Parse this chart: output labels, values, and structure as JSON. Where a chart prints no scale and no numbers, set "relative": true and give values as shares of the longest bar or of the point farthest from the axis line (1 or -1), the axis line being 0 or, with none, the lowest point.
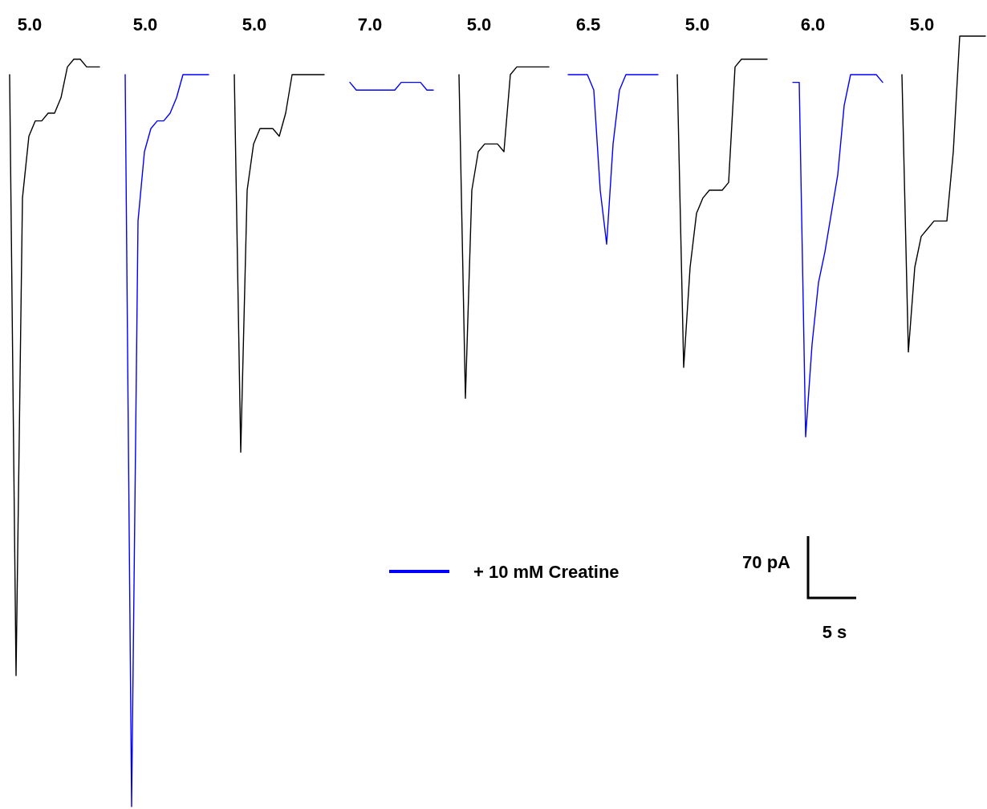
{
  "chart_data": {
    "type": "line",
    "relative": true,
    "legend": "bottom",
    "categories": [
      null,
      null,
      null,
      null,
      null,
      null,
      null,
      null,
      null,
      null,
      null,
      null,
      null,
      null,
      null,
      null,
      null,
      null,
      null,
      null,
      null,
      null,
      null,
      null,
      null,
      null,
      null,
      null,
      null,
      null,
      null,
      null,
      null,
      null,
      null,
      null,
      null,
      null,
      null,
      null,
      null,
      null,
      null,
      null,
      null,
      null,
      null,
      null,
      null,
      null,
      null,
      null,
      null,
      null,
      null,
      null,
      null,
      null,
      null,
      null,
      null,
      null,
      null,
      null,
      null,
      null,
      null,
      null,
      null,
      null,
      null,
      null,
      null,
      null,
      null,
      null,
      null,
      null,
      null,
      null,
      null,
      null,
      null,
      null,
      null,
      null,
      null,
      null,
      null,
      null,
      null,
      null,
      null,
      null,
      null,
      null,
      null,
      null,
      null,
      null,
      null,
      null,
      null,
      null,
      null,
      null,
      null,
      null,
      null,
      null,
      null,
      null,
      null,
      null,
      null,
      null,
      null,
      null,
      null,
      null,
      null,
      null,
      null,
      null,
      null,
      null,
      null,
      null,
      null,
      null,
      null,
      null,
      null,
      null,
      null,
      null,
      null,
      null,
      null,
      null,
      null,
      null,
      null,
      null,
      null,
      null,
      null,
      null,
      null,
      null,
      null,
      null,
      null
    ],
    "series": [
      {
        "color": "#000000",
        "values": [
          0.95,
          0.17,
          0.79,
          0.87,
          0.89,
          0.89,
          0.9,
          0.9,
          0.92,
          0.96,
          0.97,
          0.97,
          0.96,
          0.96,
          0.96,
          null,
          null,
          null,
          null,
          null,
          null,
          null,
          null,
          null,
          null,
          null,
          null,
          null,
          null,
          null,
          null,
          null,
          null,
          null,
          null,
          null,
          null,
          null,
          null,
          null,
          null,
          null,
          null,
          null,
          null,
          null,
          null,
          null,
          null,
          null,
          null,
          null,
          null,
          null,
          null,
          null,
          null,
          null,
          null,
          null,
          null,
          null,
          null,
          null,
          null,
          null,
          null,
          null,
          null,
          null,
          null,
          null,
          null,
          null,
          null,
          null,
          null,
          null,
          null,
          null,
          null,
          null,
          null,
          null,
          null,
          null,
          null,
          null,
          null,
          null,
          null,
          null,
          null,
          null,
          null,
          null,
          null,
          null,
          null,
          null,
          null,
          null,
          null,
          null,
          null,
          null,
          null,
          null,
          null,
          null,
          null,
          null,
          null,
          null,
          null,
          null,
          null,
          null,
          null,
          null,
          null,
          null,
          null,
          null,
          null,
          null,
          null,
          null,
          null,
          null,
          null,
          null,
          null,
          null,
          null,
          null,
          null,
          null,
          null,
          null,
          null,
          null,
          null,
          null,
          null,
          null,
          null,
          null,
          null,
          null,
          null,
          null,
          null
        ]
      },
      {
        "name": "+ 10 mM Creatine",
        "color": "#0000ff",
        "values": [
          null,
          null,
          null,
          null,
          null,
          null,
          null,
          null,
          null,
          null,
          null,
          null,
          null,
          null,
          null,
          null,
          null,
          null,
          0.95,
          0,
          0.76,
          0.85,
          0.88,
          0.89,
          0.89,
          0.9,
          0.92,
          0.95,
          0.95,
          0.95,
          0.95,
          0.95,
          null,
          null,
          null,
          null,
          null,
          null,
          null,
          null,
          null,
          null,
          null,
          null,
          null,
          null,
          null,
          null,
          null,
          null,
          null,
          null,
          null,
          null,
          null,
          null,
          null,
          null,
          null,
          null,
          null,
          null,
          null,
          null,
          null,
          null,
          null,
          null,
          null,
          null,
          null,
          null,
          null,
          null,
          null,
          null,
          null,
          null,
          null,
          null,
          null,
          null,
          null,
          null,
          null,
          null,
          null,
          null,
          null,
          null,
          null,
          null,
          null,
          null,
          null,
          null,
          null,
          null,
          null,
          null,
          null,
          null,
          null,
          null,
          null,
          null,
          null,
          null,
          null,
          null,
          null,
          null,
          null,
          null,
          null,
          null,
          null,
          null,
          null,
          null,
          null,
          null,
          null,
          null,
          null,
          null,
          null,
          null,
          null,
          null,
          null,
          null,
          null,
          null,
          null,
          null,
          null,
          null,
          null,
          null,
          null,
          null,
          null,
          null,
          null,
          null,
          null,
          null,
          null,
          null,
          null,
          null,
          null
        ]
      },
      {
        "color": "#000000",
        "values": [
          null,
          null,
          null,
          null,
          null,
          null,
          null,
          null,
          null,
          null,
          null,
          null,
          null,
          null,
          null,
          null,
          null,
          null,
          null,
          null,
          null,
          null,
          null,
          null,
          null,
          null,
          null,
          null,
          null,
          null,
          null,
          null,
          null,
          null,
          null,
          0.95,
          0.46,
          0.8,
          0.86,
          0.88,
          0.88,
          0.88,
          0.87,
          0.9,
          0.95,
          0.95,
          0.95,
          0.95,
          0.95,
          0.95,
          null,
          null,
          null,
          null,
          null,
          null,
          null,
          null,
          null,
          null,
          null,
          null,
          null,
          null,
          null,
          null,
          null,
          null,
          null,
          null,
          null,
          null,
          null,
          null,
          null,
          null,
          null,
          null,
          null,
          null,
          null,
          null,
          null,
          null,
          null,
          null,
          null,
          null,
          null,
          null,
          null,
          null,
          null,
          null,
          null,
          null,
          null,
          null,
          null,
          null,
          null,
          null,
          null,
          null,
          null,
          null,
          null,
          null,
          null,
          null,
          null,
          null,
          null,
          null,
          null,
          null,
          null,
          null,
          null,
          null,
          null,
          null,
          null,
          null,
          null,
          null,
          null,
          null,
          null,
          null,
          null,
          null,
          null,
          null,
          null,
          null,
          null,
          null,
          null,
          null,
          null,
          null,
          null,
          null,
          null,
          null,
          null,
          null,
          null,
          null,
          null,
          null,
          null
        ]
      },
      {
        "color": "#0000ff",
        "values": [
          null,
          null,
          null,
          null,
          null,
          null,
          null,
          null,
          null,
          null,
          null,
          null,
          null,
          null,
          null,
          null,
          null,
          null,
          null,
          null,
          null,
          null,
          null,
          null,
          null,
          null,
          null,
          null,
          null,
          null,
          null,
          null,
          null,
          null,
          null,
          null,
          null,
          null,
          null,
          null,
          null,
          null,
          null,
          null,
          null,
          null,
          null,
          null,
          null,
          null,
          null,
          null,
          null,
          0.94,
          0.93,
          0.93,
          0.93,
          0.93,
          0.93,
          0.93,
          0.93,
          0.94,
          0.94,
          0.94,
          0.94,
          0.93,
          0.93,
          null,
          null,
          null,
          null,
          null,
          null,
          null,
          null,
          null,
          null,
          null,
          null,
          null,
          null,
          null,
          null,
          null,
          null,
          null,
          null,
          null,
          null,
          null,
          null,
          null,
          null,
          null,
          null,
          null,
          null,
          null,
          null,
          null,
          null,
          null,
          null,
          null,
          null,
          null,
          null,
          null,
          null,
          null,
          null,
          null,
          null,
          null,
          null,
          null,
          null,
          null,
          null,
          null,
          null,
          null,
          null,
          null,
          null,
          null,
          null,
          null,
          null,
          null,
          null,
          null,
          null,
          null,
          null,
          null,
          null,
          null,
          null,
          null,
          null,
          null,
          null,
          null,
          null,
          null,
          null,
          null,
          null,
          null,
          null,
          null,
          null
        ]
      },
      {
        "color": "#000000",
        "values": [
          null,
          null,
          null,
          null,
          null,
          null,
          null,
          null,
          null,
          null,
          null,
          null,
          null,
          null,
          null,
          null,
          null,
          null,
          null,
          null,
          null,
          null,
          null,
          null,
          null,
          null,
          null,
          null,
          null,
          null,
          null,
          null,
          null,
          null,
          null,
          null,
          null,
          null,
          null,
          null,
          null,
          null,
          null,
          null,
          null,
          null,
          null,
          null,
          null,
          null,
          null,
          null,
          null,
          null,
          null,
          null,
          null,
          null,
          null,
          null,
          null,
          null,
          null,
          null,
          null,
          null,
          null,
          null,
          null,
          null,
          0.95,
          0.53,
          0.8,
          0.85,
          0.86,
          0.86,
          0.86,
          0.85,
          0.95,
          0.96,
          0.96,
          0.96,
          0.96,
          0.96,
          0.96,
          null,
          null,
          null,
          null,
          null,
          null,
          null,
          null,
          null,
          null,
          null,
          null,
          null,
          null,
          null,
          null,
          null,
          null,
          null,
          null,
          null,
          null,
          null,
          null,
          null,
          null,
          null,
          null,
          null,
          null,
          null,
          null,
          null,
          null,
          null,
          null,
          null,
          null,
          null,
          null,
          null,
          null,
          null,
          null,
          null,
          null,
          null,
          null,
          null,
          null,
          null,
          null,
          null,
          null,
          null,
          null,
          null,
          null,
          null,
          null,
          null,
          null,
          null,
          null,
          null,
          null,
          null,
          null
        ]
      },
      {
        "color": "#0000ff",
        "values": [
          null,
          null,
          null,
          null,
          null,
          null,
          null,
          null,
          null,
          null,
          null,
          null,
          null,
          null,
          null,
          null,
          null,
          null,
          null,
          null,
          null,
          null,
          null,
          null,
          null,
          null,
          null,
          null,
          null,
          null,
          null,
          null,
          null,
          null,
          null,
          null,
          null,
          null,
          null,
          null,
          null,
          null,
          null,
          null,
          null,
          null,
          null,
          null,
          null,
          null,
          null,
          null,
          null,
          null,
          null,
          null,
          null,
          null,
          null,
          null,
          null,
          null,
          null,
          null,
          null,
          null,
          null,
          null,
          null,
          null,
          null,
          null,
          null,
          null,
          null,
          null,
          null,
          null,
          null,
          null,
          null,
          null,
          null,
          null,
          null,
          null,
          null,
          0.95,
          0.95,
          0.95,
          0.95,
          0.93,
          0.8,
          0.73,
          0.86,
          0.93,
          0.95,
          0.95,
          0.95,
          0.95,
          0.95,
          0.95,
          null,
          null,
          null,
          null,
          null,
          null,
          null,
          null,
          null,
          null,
          null,
          null,
          null,
          null,
          null,
          null,
          null,
          null,
          null,
          null,
          null,
          null,
          null,
          null,
          null,
          null,
          null,
          null,
          null,
          null,
          null,
          null,
          null,
          null,
          null,
          null,
          null,
          null,
          null,
          null,
          null,
          null,
          null,
          null,
          null,
          null,
          null,
          null,
          null,
          null,
          null
        ]
      },
      {
        "color": "#000000",
        "values": [
          null,
          null,
          null,
          null,
          null,
          null,
          null,
          null,
          null,
          null,
          null,
          null,
          null,
          null,
          null,
          null,
          null,
          null,
          null,
          null,
          null,
          null,
          null,
          null,
          null,
          null,
          null,
          null,
          null,
          null,
          null,
          null,
          null,
          null,
          null,
          null,
          null,
          null,
          null,
          null,
          null,
          null,
          null,
          null,
          null,
          null,
          null,
          null,
          null,
          null,
          null,
          null,
          null,
          null,
          null,
          null,
          null,
          null,
          null,
          null,
          null,
          null,
          null,
          null,
          null,
          null,
          null,
          null,
          null,
          null,
          null,
          null,
          null,
          null,
          null,
          null,
          null,
          null,
          null,
          null,
          null,
          null,
          null,
          null,
          null,
          null,
          null,
          null,
          null,
          null,
          null,
          null,
          null,
          null,
          null,
          null,
          null,
          null,
          null,
          null,
          null,
          null,
          null,
          null,
          0.95,
          0.57,
          0.7,
          0.77,
          0.79,
          0.8,
          0.8,
          0.8,
          0.81,
          0.96,
          0.97,
          0.97,
          0.97,
          0.97,
          0.97,
          null,
          null,
          null,
          null,
          null,
          null,
          null,
          null,
          null,
          null,
          null,
          null,
          null,
          null,
          null,
          null,
          null,
          null,
          null,
          null,
          null,
          null,
          null,
          null,
          null,
          null,
          null,
          null,
          null,
          null,
          null,
          null,
          null,
          null
        ]
      },
      {
        "color": "#0000ff",
        "values": [
          null,
          null,
          null,
          null,
          null,
          null,
          null,
          null,
          null,
          null,
          null,
          null,
          null,
          null,
          null,
          null,
          null,
          null,
          null,
          null,
          null,
          null,
          null,
          null,
          null,
          null,
          null,
          null,
          null,
          null,
          null,
          null,
          null,
          null,
          null,
          null,
          null,
          null,
          null,
          null,
          null,
          null,
          null,
          null,
          null,
          null,
          null,
          null,
          null,
          null,
          null,
          null,
          null,
          null,
          null,
          null,
          null,
          null,
          null,
          null,
          null,
          null,
          null,
          null,
          null,
          null,
          null,
          null,
          null,
          null,
          null,
          null,
          null,
          null,
          null,
          null,
          null,
          null,
          null,
          null,
          null,
          null,
          null,
          null,
          null,
          null,
          null,
          null,
          null,
          null,
          null,
          null,
          null,
          null,
          null,
          null,
          null,
          null,
          null,
          null,
          null,
          null,
          null,
          null,
          null,
          null,
          null,
          null,
          null,
          null,
          null,
          null,
          null,
          null,
          null,
          null,
          null,
          null,
          null,
          null,
          null,
          null,
          0.94,
          0.94,
          0.48,
          0.6,
          0.68,
          0.72,
          0.77,
          0.82,
          0.91,
          0.95,
          0.95,
          0.95,
          0.95,
          0.95,
          0.94,
          null,
          null,
          null,
          null,
          null,
          null,
          null,
          null,
          null,
          null,
          null,
          null,
          null,
          null,
          null,
          null
        ]
      },
      {
        "color": "#000000",
        "values": [
          null,
          null,
          null,
          null,
          null,
          null,
          null,
          null,
          null,
          null,
          null,
          null,
          null,
          null,
          null,
          null,
          null,
          null,
          null,
          null,
          null,
          null,
          null,
          null,
          null,
          null,
          null,
          null,
          null,
          null,
          null,
          null,
          null,
          null,
          null,
          null,
          null,
          null,
          null,
          null,
          null,
          null,
          null,
          null,
          null,
          null,
          null,
          null,
          null,
          null,
          null,
          null,
          null,
          null,
          null,
          null,
          null,
          null,
          null,
          null,
          null,
          null,
          null,
          null,
          null,
          null,
          null,
          null,
          null,
          null,
          null,
          null,
          null,
          null,
          null,
          null,
          null,
          null,
          null,
          null,
          null,
          null,
          null,
          null,
          null,
          null,
          null,
          null,
          null,
          null,
          null,
          null,
          null,
          null,
          null,
          null,
          null,
          null,
          null,
          null,
          null,
          null,
          null,
          null,
          null,
          null,
          null,
          null,
          null,
          null,
          null,
          null,
          null,
          null,
          null,
          null,
          null,
          null,
          null,
          null,
          null,
          null,
          null,
          null,
          null,
          null,
          null,
          null,
          null,
          null,
          null,
          null,
          null,
          null,
          null,
          null,
          null,
          null,
          null,
          0.95,
          0.59,
          0.7,
          0.74,
          0.75,
          0.76,
          0.76,
          0.76,
          0.85,
          1.0,
          1.0,
          1.0,
          1.0,
          1.0
        ]
      }
    ],
    "annotations": [
      "5.0",
      "5.0",
      "5.0",
      "7.0",
      "5.0",
      "6.5",
      "5.0",
      "6.0",
      "5.0",
      "70 pA",
      "5 s"
    ]
  }
}
